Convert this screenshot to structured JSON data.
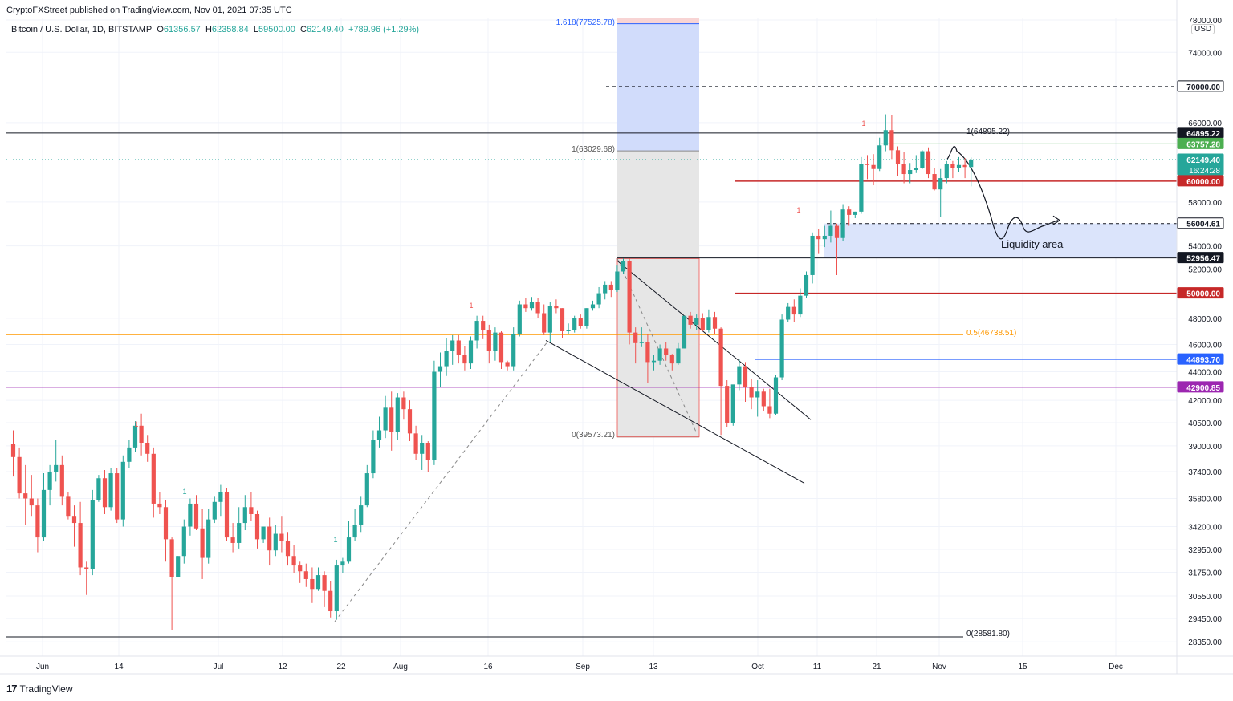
{
  "header": {
    "publisher": "CryptoFXStreet published on TradingView.com, Nov 01, 2021 07:35 UTC"
  },
  "symbol": {
    "name": "Bitcoin / U.S. Dollar, 1D, BITSTAMP",
    "open_label": "O",
    "open": "61356.57",
    "high_label": "H",
    "high": "62358.84",
    "low_label": "L",
    "low": "59500.00",
    "close_label": "C",
    "close": "62149.40",
    "change": "+789.96 (+1.29%)"
  },
  "currency": "USD",
  "footer": {
    "brand": "TradingView",
    "logo": "17"
  },
  "colors": {
    "up": "#26a69a",
    "down": "#ef5350",
    "support_red": "#c62828",
    "fib_orange": "#ff9800",
    "blue_level": "#2962ff",
    "purple_level": "#9c27b0",
    "green_level": "#4caf50",
    "liquidity": "#dbe4fb",
    "fib_zone_blue": "#d1dcfb",
    "fib_zone_grey": "#e6e6e6"
  },
  "chart_data": {
    "type": "candlestick",
    "title": "Bitcoin / U.S. Dollar, 1D, BITSTAMP",
    "x_tick_labels": [
      "Jun",
      "14",
      "Jul",
      "12",
      "22",
      "Aug",
      "16",
      "Sep",
      "13",
      "Oct",
      "11",
      "21",
      "Nov",
      "15",
      "Dec"
    ],
    "y_tick_labels": [
      "78000.00",
      "74000.00",
      "66000.00",
      "58000.00",
      "54000.00",
      "52000.00",
      "48000.00",
      "46000.00",
      "44000.00",
      "42000.00",
      "40500.00",
      "39000.00",
      "37400.00",
      "35800.00",
      "34200.00",
      "32950.00",
      "31750.00",
      "30550.00",
      "29450.00",
      "28350.00"
    ],
    "ylim": [
      27700,
      78300
    ],
    "y_scale": "log",
    "price_levels": [
      {
        "label": "70000.00",
        "value": 70000,
        "style": "dashed-black"
      },
      {
        "label": "64895.22",
        "value": 64895.22,
        "style": "black"
      },
      {
        "label": "63757.28",
        "value": 63757.28,
        "style": "green"
      },
      {
        "label": "62149.40",
        "value": 62149.4,
        "style": "current",
        "countdown": "16:24:28"
      },
      {
        "label": "60000.00",
        "value": 60000,
        "style": "red"
      },
      {
        "label": "56004.61",
        "value": 56004.61,
        "style": "dashed-black"
      },
      {
        "label": "52956.47",
        "value": 52956.47,
        "style": "black"
      },
      {
        "label": "50000.00",
        "value": 50000,
        "style": "red"
      },
      {
        "label": "44893.70",
        "value": 44893.7,
        "style": "blue"
      },
      {
        "label": "42900.85",
        "value": 42900.85,
        "style": "purple"
      }
    ],
    "fib_labels": [
      {
        "text": "1.618(77525.78)",
        "value": 77525.78
      },
      {
        "text": "1(63029.68)",
        "value": 63029.68
      },
      {
        "text": "0(39573.21)",
        "value": 39573.21
      },
      {
        "text": "1(64895.22)",
        "value": 64895.22
      },
      {
        "text": "0.5(46738.51)",
        "value": 46738.51
      },
      {
        "text": "0(28581.80)",
        "value": 28581.8
      }
    ],
    "annotations": [
      {
        "text": "Liquidity area"
      }
    ],
    "td_labels": [
      "1",
      "1",
      "1",
      "1",
      "1",
      "1"
    ],
    "candles": [
      [
        39100,
        40000,
        37100,
        38300
      ],
      [
        38300,
        38900,
        35800,
        36100
      ],
      [
        36100,
        37800,
        34300,
        35800
      ],
      [
        35800,
        37200,
        34800,
        35400
      ],
      [
        35400,
        35800,
        32800,
        33600
      ],
      [
        33600,
        37300,
        33400,
        36300
      ],
      [
        36300,
        37800,
        35400,
        37400
      ],
      [
        37400,
        39400,
        36800,
        37800
      ],
      [
        37800,
        38400,
        35400,
        35900
      ],
      [
        35900,
        36200,
        34600,
        34800
      ],
      [
        34800,
        35400,
        33100,
        34400
      ],
      [
        34400,
        35600,
        31600,
        32000
      ],
      [
        32000,
        32300,
        30600,
        31900
      ],
      [
        31900,
        36300,
        31600,
        35700
      ],
      [
        35700,
        37200,
        35600,
        37000
      ],
      [
        37000,
        37500,
        34900,
        35300
      ],
      [
        35300,
        37600,
        35100,
        37300
      ],
      [
        37300,
        37600,
        34400,
        34600
      ],
      [
        34600,
        38400,
        34200,
        38000
      ],
      [
        38000,
        39400,
        37600,
        38900
      ],
      [
        38900,
        40600,
        38600,
        40300
      ],
      [
        40300,
        41100,
        38400,
        39200
      ],
      [
        39200,
        39700,
        38000,
        38500
      ],
      [
        38500,
        38900,
        34700,
        35500
      ],
      [
        35500,
        36200,
        34900,
        35300
      ],
      [
        35300,
        35700,
        32300,
        33500
      ],
      [
        33500,
        33600,
        28900,
        31500
      ],
      [
        31500,
        32600,
        31500,
        32600
      ],
      [
        32600,
        34600,
        32200,
        34200
      ],
      [
        34200,
        35800,
        33700,
        35500
      ],
      [
        35500,
        36000,
        34000,
        34100
      ],
      [
        34100,
        35200,
        31400,
        32500
      ],
      [
        32500,
        35200,
        32200,
        34600
      ],
      [
        34600,
        35900,
        34400,
        35600
      ],
      [
        35600,
        36600,
        34800,
        36200
      ],
      [
        36200,
        36400,
        33400,
        33600
      ],
      [
        33600,
        34400,
        32800,
        33300
      ],
      [
        33300,
        35300,
        33000,
        34400
      ],
      [
        34400,
        36000,
        34000,
        35300
      ],
      [
        35300,
        36200,
        34500,
        34900
      ],
      [
        34900,
        35100,
        33000,
        33500
      ],
      [
        33500,
        34200,
        33300,
        34200
      ],
      [
        34200,
        34700,
        32100,
        32900
      ],
      [
        32900,
        34300,
        32600,
        33800
      ],
      [
        33800,
        34800,
        32800,
        33400
      ],
      [
        33400,
        33900,
        32100,
        32600
      ],
      [
        32600,
        33200,
        31700,
        32100
      ],
      [
        32100,
        32300,
        31200,
        31800
      ],
      [
        31800,
        32200,
        31000,
        31400
      ],
      [
        31400,
        32000,
        30200,
        30900
      ],
      [
        30900,
        32000,
        30800,
        31600
      ],
      [
        31600,
        31800,
        30000,
        30800
      ],
      [
        30800,
        31300,
        29500,
        29800
      ],
      [
        29800,
        32400,
        29400,
        32100
      ],
      [
        32100,
        32500,
        31700,
        32300
      ],
      [
        32300,
        34500,
        32200,
        33600
      ],
      [
        33600,
        35200,
        33400,
        34300
      ],
      [
        34300,
        35900,
        33900,
        35400
      ],
      [
        35400,
        37800,
        35300,
        37300
      ],
      [
        37300,
        40000,
        37000,
        39400
      ],
      [
        39400,
        40900,
        38900,
        40000
      ],
      [
        40000,
        42300,
        39500,
        41500
      ],
      [
        41500,
        42600,
        38700,
        39900
      ],
      [
        39900,
        42500,
        39400,
        42200
      ],
      [
        42200,
        42600,
        40700,
        41400
      ],
      [
        41400,
        42000,
        39300,
        39800
      ],
      [
        39800,
        40300,
        38100,
        38500
      ],
      [
        38500,
        39700,
        37500,
        39200
      ],
      [
        39200,
        39300,
        37400,
        38100
      ],
      [
        38100,
        44800,
        37800,
        44000
      ],
      [
        44000,
        45400,
        42900,
        44400
      ],
      [
        44400,
        46500,
        43700,
        45500
      ],
      [
        45500,
        46700,
        44500,
        46300
      ],
      [
        46300,
        46700,
        44600,
        45200
      ],
      [
        45200,
        45900,
        44100,
        44600
      ],
      [
        44600,
        46600,
        44200,
        46300
      ],
      [
        46300,
        48200,
        45700,
        47800
      ],
      [
        47800,
        48200,
        46400,
        47100
      ],
      [
        47100,
        47500,
        44600,
        45500
      ],
      [
        45500,
        47300,
        44800,
        46900
      ],
      [
        46900,
        47000,
        44200,
        44700
      ],
      [
        44700,
        44800,
        44100,
        44400
      ],
      [
        44400,
        47300,
        44100,
        46800
      ],
      [
        46800,
        49400,
        46600,
        49100
      ],
      [
        49100,
        49600,
        48500,
        48800
      ],
      [
        48800,
        49700,
        48600,
        49300
      ],
      [
        49300,
        49600,
        48000,
        48400
      ],
      [
        48400,
        49100,
        46700,
        46900
      ],
      [
        46900,
        49300,
        46200,
        49000
      ],
      [
        49000,
        49500,
        48400,
        48800
      ],
      [
        48800,
        48800,
        46500,
        47000
      ],
      [
        47000,
        47600,
        46800,
        47100
      ],
      [
        47100,
        48200,
        46900,
        48000
      ],
      [
        48000,
        48300,
        47200,
        47400
      ],
      [
        47400,
        48800,
        47200,
        48800
      ],
      [
        48800,
        49400,
        48600,
        49100
      ],
      [
        49100,
        50500,
        48800,
        50000
      ],
      [
        50000,
        51000,
        49500,
        50700
      ],
      [
        50700,
        51000,
        49700,
        50300
      ],
      [
        50300,
        52300,
        50100,
        51800
      ],
      [
        51800,
        52900,
        51600,
        52700
      ],
      [
        52700,
        52900,
        46000,
        46900
      ],
      [
        46900,
        47300,
        44600,
        46100
      ],
      [
        46100,
        47300,
        45800,
        46200
      ],
      [
        46200,
        46800,
        43200,
        44700
      ],
      [
        44700,
        45200,
        44100,
        44800
      ],
      [
        44800,
        46000,
        44500,
        45700
      ],
      [
        45700,
        46200,
        44800,
        45200
      ],
      [
        45200,
        45300,
        44100,
        44600
      ],
      [
        44600,
        46100,
        44500,
        45700
      ],
      [
        45700,
        48100,
        45700,
        48200
      ],
      [
        48200,
        48500,
        47200,
        47500
      ],
      [
        47500,
        48300,
        47100,
        48000
      ],
      [
        48000,
        48400,
        47000,
        47100
      ],
      [
        47100,
        48700,
        46900,
        48100
      ],
      [
        48100,
        48500,
        46800,
        47200
      ],
      [
        47200,
        47300,
        39700,
        43000
      ],
      [
        43000,
        43400,
        40200,
        40500
      ],
      [
        40500,
        43000,
        40300,
        43100
      ],
      [
        43100,
        44900,
        42700,
        44400
      ],
      [
        44400,
        44700,
        41900,
        42900
      ],
      [
        42900,
        43500,
        41400,
        42200
      ],
      [
        42200,
        43400,
        40900,
        42600
      ],
      [
        42600,
        42800,
        41300,
        41600
      ],
      [
        41600,
        42800,
        40800,
        41100
      ],
      [
        41100,
        43800,
        41000,
        43600
      ],
      [
        43600,
        48300,
        43400,
        47900
      ],
      [
        47900,
        49200,
        47700,
        48900
      ],
      [
        48900,
        49500,
        47700,
        48300
      ],
      [
        48300,
        50400,
        48100,
        49800
      ],
      [
        49800,
        51800,
        49600,
        51500
      ],
      [
        51500,
        55200,
        50800,
        54900
      ],
      [
        54900,
        55500,
        53300,
        54600
      ],
      [
        54600,
        55800,
        53900,
        54900
      ],
      [
        54900,
        57200,
        54300,
        55800
      ],
      [
        55800,
        56000,
        51500,
        54700
      ],
      [
        54700,
        57800,
        54400,
        57300
      ],
      [
        57300,
        57600,
        55800,
        56800
      ],
      [
        56800,
        57100,
        56500,
        57100
      ],
      [
        57100,
        62400,
        56900,
        61700
      ],
      [
        61700,
        62600,
        60200,
        61600
      ],
      [
        61600,
        62700,
        59600,
        61200
      ],
      [
        61200,
        64400,
        61000,
        63600
      ],
      [
        63600,
        66900,
        63000,
        65200
      ],
      [
        65200,
        66800,
        62200,
        63100
      ],
      [
        63100,
        63500,
        60500,
        61700
      ],
      [
        61700,
        62900,
        59800,
        60700
      ],
      [
        60700,
        61800,
        59800,
        61100
      ],
      [
        61100,
        62600,
        60800,
        61300
      ],
      [
        61300,
        63100,
        61200,
        63000
      ],
      [
        63000,
        63400,
        60300,
        60700
      ],
      [
        60700,
        61300,
        59100,
        59200
      ],
      [
        59200,
        61200,
        56600,
        60300
      ],
      [
        60300,
        62000,
        59800,
        61700
      ],
      [
        61700,
        62000,
        60300,
        61300
      ],
      [
        61300,
        62400,
        60900,
        61600
      ],
      [
        61600,
        62300,
        60300,
        61400
      ],
      [
        61400,
        62360,
        59500,
        62150
      ]
    ]
  }
}
